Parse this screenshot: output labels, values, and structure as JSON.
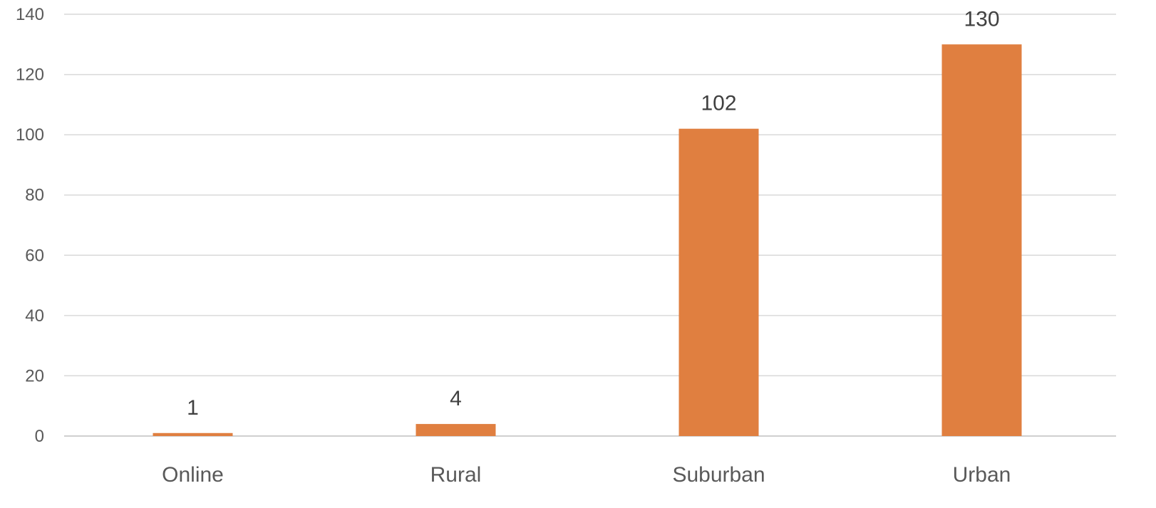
{
  "chart_data": {
    "type": "bar",
    "title": "",
    "xlabel": "",
    "ylabel": "",
    "categories": [
      "Online",
      "Rural",
      "Suburban",
      "Urban"
    ],
    "values": [
      1,
      4,
      102,
      130
    ],
    "data_labels": [
      "1",
      "4",
      "102",
      "130"
    ],
    "ylim": [
      0,
      140
    ],
    "yticks": [
      0,
      20,
      40,
      60,
      80,
      100,
      120,
      140
    ],
    "ytick_labels": [
      "0",
      "20",
      "40",
      "60",
      "80",
      "100",
      "120",
      "140"
    ],
    "grid": true,
    "legend": "none",
    "bar_color": "#E07F40",
    "grid_color": "#D9D9D9",
    "tick_label_color": "#595959",
    "data_label_color": "#404040"
  }
}
